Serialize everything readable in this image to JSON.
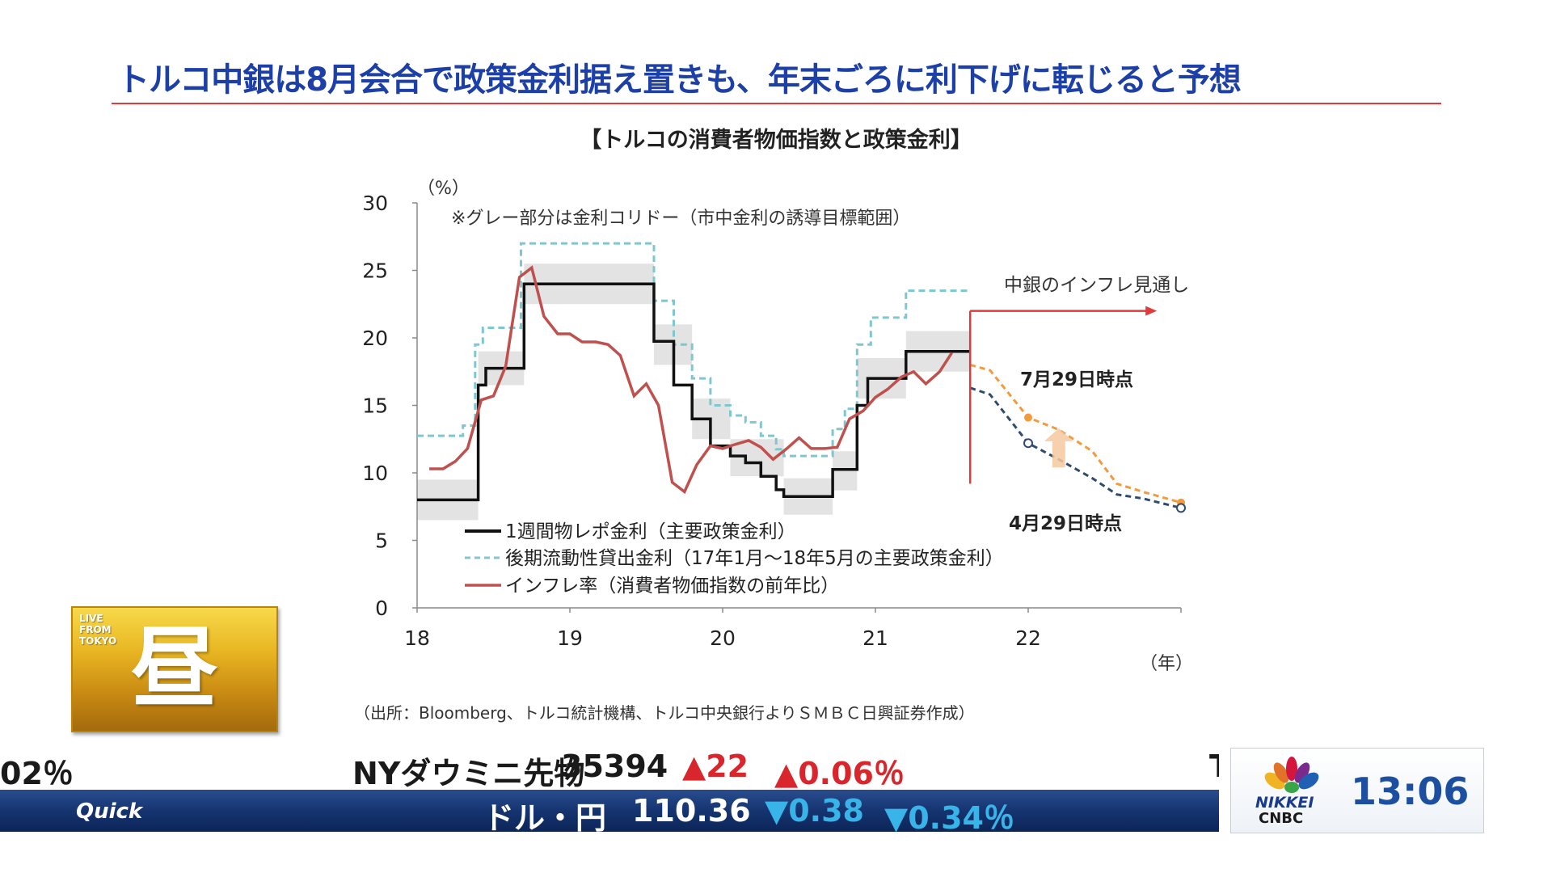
{
  "headline": "トルコ中銀は8月会合で政策金利据え置きも、年末ごろに利下げに転じると予想",
  "source_note": "（出所：Bloomberg、トルコ統計機構、トルコ中央銀行よりＳＭＢＣ日興証券作成）",
  "badge": {
    "live_text": "LIVE\nFROM\nTOKYO",
    "kanji": "昼"
  },
  "ticker_top": {
    "prev_tail": "02％",
    "name": "NYダウミニ先物",
    "value": "35394",
    "change": "▲22",
    "change_pct": "▲0.06％",
    "next_head": "T"
  },
  "ticker_bottom": {
    "logo": "Quick",
    "name": "ドル・円",
    "value": "110.36",
    "change": "▼0.38",
    "change_pct": "▼0.34％"
  },
  "clock": {
    "time": "13:06",
    "brand_top": "NIKKEI",
    "brand_bottom": "CNBC"
  },
  "colors": {
    "policy": "#111111",
    "lending": "#7fc7cf",
    "inflation": "#c0504d",
    "forecast_jul": "#f39a3e",
    "forecast_apr": "#2f4b6e",
    "arrow": "#e03a3a",
    "corridor": "#e3e3e3",
    "headline": "#1d3fa8"
  },
  "chart_data": {
    "type": "line",
    "title": "【トルコの消費者物価指数と政策金利】",
    "y_unit": "（%）",
    "x_unit": "（年）",
    "xlim": [
      18,
      23
    ],
    "ylim": [
      0,
      30
    ],
    "x_ticks": [
      18,
      19,
      20,
      21,
      22
    ],
    "y_ticks": [
      0,
      5,
      10,
      15,
      20,
      25,
      30
    ],
    "note": "※グレー部分は金利コリドー（市中金利の誘導目標範囲）",
    "annotations": {
      "outlook": "中銀のインフレ見通し",
      "jul": "7月29日時点",
      "apr": "4月29日時点"
    },
    "legend": [
      {
        "key": "policy",
        "label": "1週間物レポ金利（主要政策金利）"
      },
      {
        "key": "lending",
        "label": "後期流動性貸出金利（17年1月～18年5月の主要政策金利）"
      },
      {
        "key": "inflation",
        "label": "インフレ率（消費者物価指数の前年比）"
      }
    ],
    "series": {
      "policy": [
        [
          18,
          8
        ],
        [
          18.4,
          8
        ],
        [
          18.4,
          16.5
        ],
        [
          18.45,
          16.5
        ],
        [
          18.45,
          17.75
        ],
        [
          18.7,
          17.75
        ],
        [
          18.7,
          24
        ],
        [
          19.55,
          24
        ],
        [
          19.55,
          19.75
        ],
        [
          19.68,
          19.75
        ],
        [
          19.68,
          16.5
        ],
        [
          19.8,
          16.5
        ],
        [
          19.8,
          14
        ],
        [
          19.92,
          14
        ],
        [
          19.92,
          12
        ],
        [
          20.05,
          12
        ],
        [
          20.05,
          11.25
        ],
        [
          20.15,
          11.25
        ],
        [
          20.15,
          10.75
        ],
        [
          20.25,
          10.75
        ],
        [
          20.25,
          9.75
        ],
        [
          20.35,
          9.75
        ],
        [
          20.35,
          8.75
        ],
        [
          20.4,
          8.75
        ],
        [
          20.4,
          8.25
        ],
        [
          20.72,
          8.25
        ],
        [
          20.72,
          10.25
        ],
        [
          20.88,
          10.25
        ],
        [
          20.88,
          15
        ],
        [
          20.95,
          15
        ],
        [
          20.95,
          17
        ],
        [
          21.2,
          17
        ],
        [
          21.2,
          19
        ],
        [
          21.62,
          19
        ]
      ],
      "lending": [
        [
          18,
          12.75
        ],
        [
          18.3,
          12.75
        ],
        [
          18.3,
          13.5
        ],
        [
          18.38,
          13.5
        ],
        [
          18.38,
          19.5
        ],
        [
          18.43,
          19.5
        ],
        [
          18.43,
          20.75
        ],
        [
          18.68,
          20.75
        ],
        [
          18.68,
          27
        ],
        [
          19.55,
          27
        ],
        [
          19.55,
          22.75
        ],
        [
          19.68,
          22.75
        ],
        [
          19.68,
          19.5
        ],
        [
          19.8,
          19.5
        ],
        [
          19.8,
          17
        ],
        [
          19.92,
          17
        ],
        [
          19.92,
          15
        ],
        [
          20.05,
          15
        ],
        [
          20.05,
          14.25
        ],
        [
          20.15,
          14.25
        ],
        [
          20.15,
          13.75
        ],
        [
          20.25,
          13.75
        ],
        [
          20.25,
          12.75
        ],
        [
          20.35,
          12.75
        ],
        [
          20.35,
          11.75
        ],
        [
          20.4,
          11.75
        ],
        [
          20.4,
          11.25
        ],
        [
          20.72,
          11.25
        ],
        [
          20.72,
          13.25
        ],
        [
          20.8,
          13.25
        ],
        [
          20.8,
          14.75
        ],
        [
          20.88,
          14.75
        ],
        [
          20.88,
          19.5
        ],
        [
          20.97,
          19.5
        ],
        [
          20.97,
          21.5
        ],
        [
          21.2,
          21.5
        ],
        [
          21.2,
          23.5
        ],
        [
          21.62,
          23.5
        ]
      ],
      "inflation": [
        [
          18.08,
          10.3
        ],
        [
          18.17,
          10.3
        ],
        [
          18.25,
          10.85
        ],
        [
          18.33,
          11.8
        ],
        [
          18.42,
          15.4
        ],
        [
          18.5,
          15.7
        ],
        [
          18.58,
          17.9
        ],
        [
          18.67,
          24.5
        ],
        [
          18.75,
          25.2
        ],
        [
          18.83,
          21.6
        ],
        [
          18.92,
          20.3
        ],
        [
          19.0,
          20.3
        ],
        [
          19.08,
          19.7
        ],
        [
          19.17,
          19.7
        ],
        [
          19.25,
          19.5
        ],
        [
          19.33,
          18.7
        ],
        [
          19.42,
          15.7
        ],
        [
          19.5,
          16.6
        ],
        [
          19.58,
          15.0
        ],
        [
          19.67,
          9.3
        ],
        [
          19.75,
          8.6
        ],
        [
          19.83,
          10.6
        ],
        [
          19.92,
          12.0
        ],
        [
          20.0,
          11.8
        ],
        [
          20.08,
          12.1
        ],
        [
          20.17,
          12.4
        ],
        [
          20.25,
          11.9
        ],
        [
          20.33,
          11.0
        ],
        [
          20.42,
          11.8
        ],
        [
          20.5,
          12.6
        ],
        [
          20.58,
          11.8
        ],
        [
          20.67,
          11.8
        ],
        [
          20.75,
          11.9
        ],
        [
          20.83,
          14.0
        ],
        [
          20.92,
          14.6
        ],
        [
          21.0,
          15.6
        ],
        [
          21.08,
          16.2
        ],
        [
          21.17,
          17.1
        ],
        [
          21.25,
          17.5
        ],
        [
          21.33,
          16.6
        ],
        [
          21.42,
          17.5
        ],
        [
          21.5,
          18.9
        ]
      ],
      "forecast_jul": [
        [
          21.62,
          18.0
        ],
        [
          21.75,
          17.6
        ],
        [
          22.0,
          14.1
        ],
        [
          22.2,
          13.2
        ],
        [
          22.42,
          11.6
        ],
        [
          22.58,
          9.2
        ],
        [
          22.75,
          8.6
        ],
        [
          23.0,
          7.8
        ]
      ],
      "forecast_apr": [
        [
          21.62,
          16.3
        ],
        [
          21.75,
          15.8
        ],
        [
          22.0,
          12.2
        ],
        [
          22.2,
          11.0
        ],
        [
          22.42,
          9.6
        ],
        [
          22.58,
          8.4
        ],
        [
          22.75,
          8.1
        ],
        [
          23.0,
          7.4
        ]
      ],
      "corridor": [
        {
          "x0": 18,
          "x1": 18.4,
          "lo": 6.5,
          "hi": 9.5
        },
        {
          "x0": 18.4,
          "x1": 18.7,
          "lo": 16.5,
          "hi": 19.0
        },
        {
          "x0": 18.7,
          "x1": 19.55,
          "lo": 22.5,
          "hi": 25.5
        },
        {
          "x0": 19.55,
          "x1": 19.8,
          "lo": 18.0,
          "hi": 21.0
        },
        {
          "x0": 19.8,
          "x1": 20.05,
          "lo": 12.5,
          "hi": 15.5
        },
        {
          "x0": 20.05,
          "x1": 20.4,
          "lo": 9.75,
          "hi": 12.5
        },
        {
          "x0": 20.4,
          "x1": 20.72,
          "lo": 6.9,
          "hi": 9.6
        },
        {
          "x0": 20.72,
          "x1": 20.88,
          "lo": 8.7,
          "hi": 11.6
        },
        {
          "x0": 20.88,
          "x1": 21.2,
          "lo": 15.5,
          "hi": 18.5
        },
        {
          "x0": 21.2,
          "x1": 21.62,
          "lo": 17.5,
          "hi": 20.5
        }
      ],
      "markers_jul": [
        [
          22.0,
          14.1
        ],
        [
          23.0,
          7.8
        ]
      ],
      "markers_apr": [
        [
          22.0,
          12.2
        ],
        [
          23.0,
          7.4
        ]
      ]
    }
  }
}
